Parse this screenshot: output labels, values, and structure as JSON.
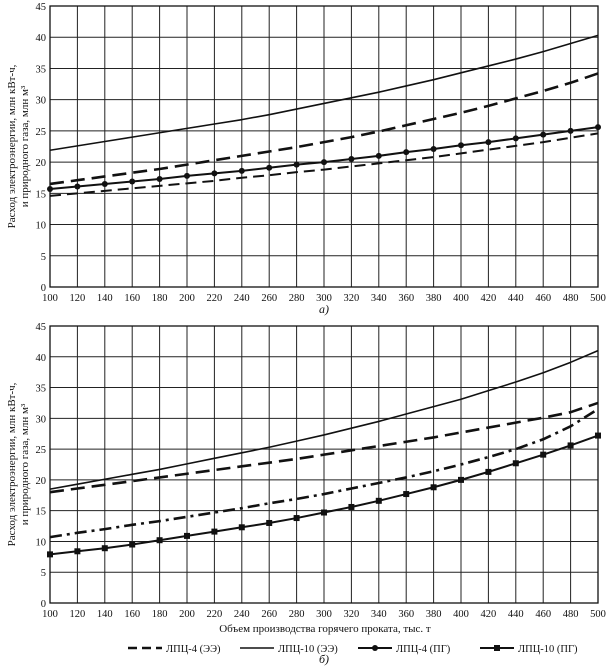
{
  "figure": {
    "xlabel": "Объем производства горячего проката, тыс. т",
    "legend": [
      {
        "name": "ЛПЦ-4 (ЭЭ)",
        "style": "dash"
      },
      {
        "name": "ЛПЦ-10 (ЭЭ)",
        "style": "solid"
      },
      {
        "name": "ЛПЦ-4 (ПГ)",
        "style": "dot-marker"
      },
      {
        "name": "ЛПЦ-10 (ПГ)",
        "style": "square-marker"
      }
    ]
  },
  "chart_data": [
    {
      "type": "line",
      "panel_label": "а)",
      "ylabel": "Расход электроэнергии, млн кВт-ч, и природного газа, млн м³",
      "xlim": [
        100,
        500
      ],
      "ylim": [
        0,
        45
      ],
      "grid": true,
      "x": [
        100,
        120,
        140,
        160,
        180,
        200,
        220,
        240,
        260,
        280,
        300,
        320,
        340,
        360,
        380,
        400,
        420,
        440,
        460,
        480,
        500
      ],
      "x_ticks": [
        "100",
        "120",
        "140",
        "160",
        "180",
        "200",
        "220",
        "240",
        "260",
        "280",
        "300",
        "320",
        "340",
        "360",
        "380",
        "400",
        "420",
        "440",
        "460",
        "480",
        "500"
      ],
      "y_ticks": [
        "0",
        "5",
        "10",
        "15",
        "20",
        "25",
        "30",
        "35",
        "40",
        "45"
      ],
      "series": [
        {
          "name": "ЛПЦ-4 (ЭЭ)",
          "style": "dash",
          "values": [
            16.5,
            17.1,
            17.7,
            18.3,
            18.9,
            19.6,
            20.3,
            21.0,
            21.7,
            22.4,
            23.2,
            24.0,
            24.9,
            25.9,
            26.9,
            27.9,
            29.0,
            30.2,
            31.4,
            32.7,
            34.2
          ]
        },
        {
          "name": "ЛПЦ-10 (ЭЭ)",
          "style": "solid",
          "values": [
            21.9,
            22.6,
            23.3,
            24.0,
            24.7,
            25.4,
            26.1,
            26.8,
            27.6,
            28.5,
            29.4,
            30.3,
            31.2,
            32.2,
            33.2,
            34.3,
            35.4,
            36.5,
            37.7,
            39.0,
            40.3
          ]
        },
        {
          "name": "ЛПЦ-4 (ПГ)",
          "style": "dot-marker",
          "values": [
            15.7,
            16.1,
            16.5,
            16.9,
            17.3,
            17.8,
            18.2,
            18.6,
            19.1,
            19.6,
            20.0,
            20.5,
            21.0,
            21.6,
            22.1,
            22.7,
            23.2,
            23.8,
            24.4,
            25.0,
            25.6
          ]
        },
        {
          "name": "ЛПЦ-10 (ПГ)",
          "style": "dash-thin",
          "values": [
            14.6,
            15.0,
            15.4,
            15.8,
            16.2,
            16.6,
            17.0,
            17.5,
            17.9,
            18.4,
            18.8,
            19.3,
            19.8,
            20.3,
            20.8,
            21.4,
            22.0,
            22.6,
            23.2,
            23.9,
            24.6
          ]
        }
      ]
    },
    {
      "type": "line",
      "panel_label": "б)",
      "ylabel": "Расход электроэнергии, млн кВт-ч, и природного газа, млн м³",
      "xlim": [
        100,
        500
      ],
      "ylim": [
        0,
        45
      ],
      "grid": true,
      "x": [
        100,
        120,
        140,
        160,
        180,
        200,
        220,
        240,
        260,
        280,
        300,
        320,
        340,
        360,
        380,
        400,
        420,
        440,
        460,
        480,
        500
      ],
      "x_ticks": [
        "100",
        "120",
        "140",
        "160",
        "180",
        "200",
        "220",
        "240",
        "260",
        "280",
        "300",
        "320",
        "340",
        "360",
        "380",
        "400",
        "420",
        "440",
        "460",
        "480",
        "500"
      ],
      "y_ticks": [
        "0",
        "5",
        "10",
        "15",
        "20",
        "25",
        "30",
        "35",
        "40",
        "45"
      ],
      "series": [
        {
          "name": "ЛПЦ-4 (ЭЭ)",
          "style": "dash",
          "values": [
            18.0,
            18.6,
            19.2,
            19.8,
            20.4,
            21.0,
            21.6,
            22.2,
            22.8,
            23.4,
            24.1,
            24.8,
            25.5,
            26.2,
            26.9,
            27.7,
            28.5,
            29.3,
            30.1,
            31.0,
            32.5
          ]
        },
        {
          "name": "ЛПЦ-10 (ЭЭ)",
          "style": "solid",
          "values": [
            18.5,
            19.3,
            20.1,
            20.9,
            21.7,
            22.6,
            23.5,
            24.4,
            25.3,
            26.3,
            27.3,
            28.4,
            29.5,
            30.7,
            31.9,
            33.1,
            34.5,
            35.9,
            37.4,
            39.1,
            41.0
          ]
        },
        {
          "name": "ЛПЦ-4 (ПГ)",
          "style": "dash-dot",
          "values": [
            10.7,
            11.4,
            12.0,
            12.7,
            13.3,
            14.0,
            14.7,
            15.4,
            16.2,
            16.9,
            17.7,
            18.6,
            19.5,
            20.4,
            21.4,
            22.5,
            23.7,
            25.0,
            26.6,
            28.7,
            31.5
          ]
        },
        {
          "name": "ЛПЦ-10 (ПГ)",
          "style": "square-marker",
          "values": [
            7.9,
            8.4,
            8.9,
            9.5,
            10.2,
            10.9,
            11.6,
            12.3,
            13.0,
            13.8,
            14.7,
            15.6,
            16.6,
            17.7,
            18.8,
            20.0,
            21.3,
            22.7,
            24.1,
            25.6,
            27.2
          ]
        }
      ]
    }
  ]
}
